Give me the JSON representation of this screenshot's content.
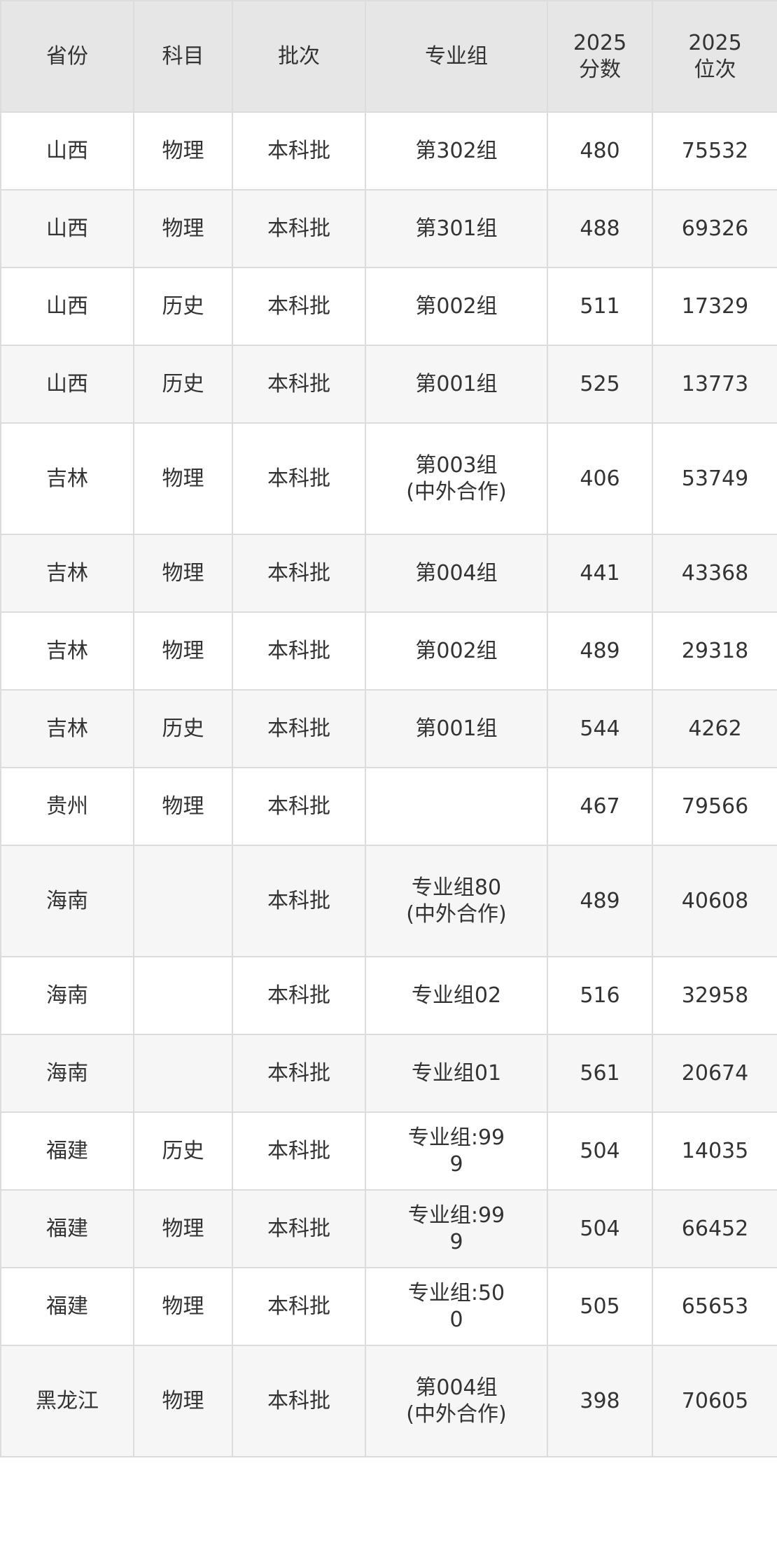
{
  "table": {
    "headers": [
      "省份",
      "科目",
      "批次",
      "专业组",
      "2025\n分数",
      "2025\n位次"
    ],
    "rows": [
      [
        "山西",
        "物理",
        "本科批",
        "第302组",
        "480",
        "75532"
      ],
      [
        "山西",
        "物理",
        "本科批",
        "第301组",
        "488",
        "69326"
      ],
      [
        "山西",
        "历史",
        "本科批",
        "第002组",
        "511",
        "17329"
      ],
      [
        "山西",
        "历史",
        "本科批",
        "第001组",
        "525",
        "13773"
      ],
      [
        "吉林",
        "物理",
        "本科批",
        "第003组(中外合作)",
        "406",
        "53749"
      ],
      [
        "吉林",
        "物理",
        "本科批",
        "第004组",
        "441",
        "43368"
      ],
      [
        "吉林",
        "物理",
        "本科批",
        "第002组",
        "489",
        "29318"
      ],
      [
        "吉林",
        "历史",
        "本科批",
        "第001组",
        "544",
        "4262"
      ],
      [
        "贵州",
        "物理",
        "本科批",
        "",
        "467",
        "79566"
      ],
      [
        "海南",
        "",
        "本科批",
        "专业组80(中外合作)",
        "489",
        "40608"
      ],
      [
        "海南",
        "",
        "本科批",
        "专业组02",
        "516",
        "32958"
      ],
      [
        "海南",
        "",
        "本科批",
        "专业组01",
        "561",
        "20674"
      ],
      [
        "福建",
        "历史",
        "本科批",
        "专业组:999",
        "504",
        "14035"
      ],
      [
        "福建",
        "物理",
        "本科批",
        "专业组:999",
        "504",
        "66452"
      ],
      [
        "福建",
        "物理",
        "本科批",
        "专业组:500",
        "505",
        "65653"
      ],
      [
        "黑龙江",
        "物理",
        "本科批",
        "第004组(中外合作)",
        "398",
        "70605"
      ]
    ]
  }
}
